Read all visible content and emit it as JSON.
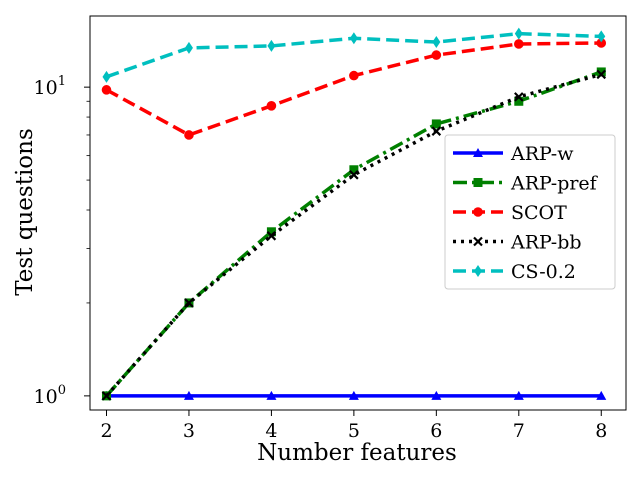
{
  "chart_data": {
    "type": "line",
    "title": "",
    "xlabel": "Number features",
    "ylabel": "Test questions",
    "yscale": "log",
    "xlim": [
      1.8,
      8.3
    ],
    "ylim": [
      0.9,
      17.0
    ],
    "grid": false,
    "legend_position": "center-right",
    "x": [
      2,
      3,
      4,
      5,
      6,
      7,
      8
    ],
    "x_ticks": [
      "2",
      "3",
      "4",
      "5",
      "6",
      "7",
      "8"
    ],
    "y_ticks": [
      {
        "value": 1,
        "base": "10",
        "exp": "0"
      },
      {
        "value": 10,
        "base": "10",
        "exp": "1"
      }
    ],
    "series": [
      {
        "name": "ARP-w",
        "color": "#0000ff",
        "linestyle": "solid",
        "marker": "triangle",
        "values": [
          1,
          1,
          1,
          1,
          1,
          1,
          1
        ]
      },
      {
        "name": "ARP-pref",
        "color": "#008000",
        "linestyle": "dashdot",
        "marker": "square",
        "values": [
          1,
          2,
          3.4,
          5.4,
          7.6,
          9.0,
          11.2
        ]
      },
      {
        "name": "SCOT",
        "color": "#ff0000",
        "linestyle": "dashed",
        "marker": "circle",
        "values": [
          9.8,
          7.0,
          8.7,
          10.9,
          12.7,
          13.8,
          13.9
        ]
      },
      {
        "name": "ARP-bb",
        "color": "#000000",
        "linestyle": "dotted",
        "marker": "x",
        "values": [
          1,
          2,
          3.3,
          5.2,
          7.2,
          9.3,
          11.0
        ]
      },
      {
        "name": "CS-0.2",
        "color": "#00bfbf",
        "linestyle": "dashed",
        "marker": "diamond",
        "values": [
          10.8,
          13.4,
          13.6,
          14.4,
          14.0,
          14.9,
          14.6
        ]
      }
    ]
  }
}
